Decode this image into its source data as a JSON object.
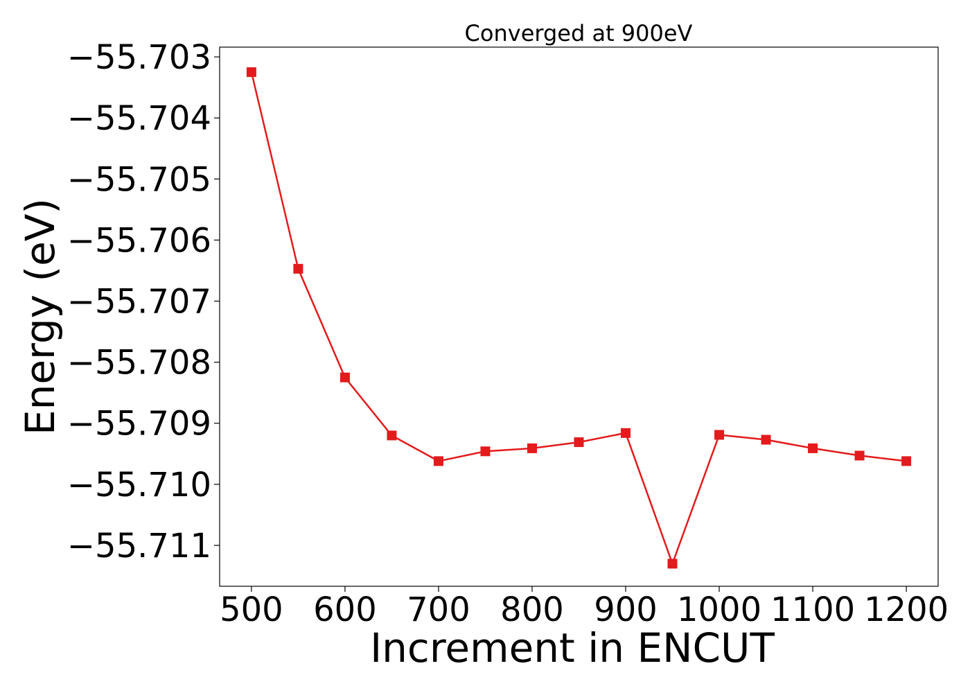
{
  "chart_data": {
    "type": "line",
    "title": "Converged at 900eV",
    "xlabel": "Increment in ENCUT",
    "ylabel": "Energy (eV)",
    "x": [
      500,
      550,
      600,
      650,
      700,
      750,
      800,
      850,
      900,
      950,
      1000,
      1050,
      1100,
      1150,
      1200
    ],
    "series": [
      {
        "values": [
          -55.70325,
          -55.70647,
          -55.70825,
          -55.7092,
          -55.70962,
          -55.70946,
          -55.70941,
          -55.70931,
          -55.70916,
          -55.7113,
          -55.70919,
          -55.70927,
          -55.70941,
          -55.70953,
          -55.70962
        ],
        "color": "#e41a1c",
        "marker": "square"
      }
    ],
    "xlim": [
      466,
      1234
    ],
    "ylim": [
      -55.71167,
      -55.70284
    ],
    "xticks": [
      500,
      600,
      700,
      800,
      900,
      1000,
      1100,
      1200
    ],
    "xtick_labels": [
      "500",
      "600",
      "700",
      "800",
      "900",
      "1000",
      "1100",
      "1200"
    ],
    "yticks": [
      -55.703,
      -55.704,
      -55.705,
      -55.706,
      -55.707,
      -55.708,
      -55.709,
      -55.71,
      -55.711
    ],
    "ytick_labels": [
      "−55.703",
      "−55.704",
      "−55.705",
      "−55.706",
      "−55.707",
      "−55.708",
      "−55.709",
      "−55.710",
      "−55.711"
    ],
    "grid": false
  }
}
